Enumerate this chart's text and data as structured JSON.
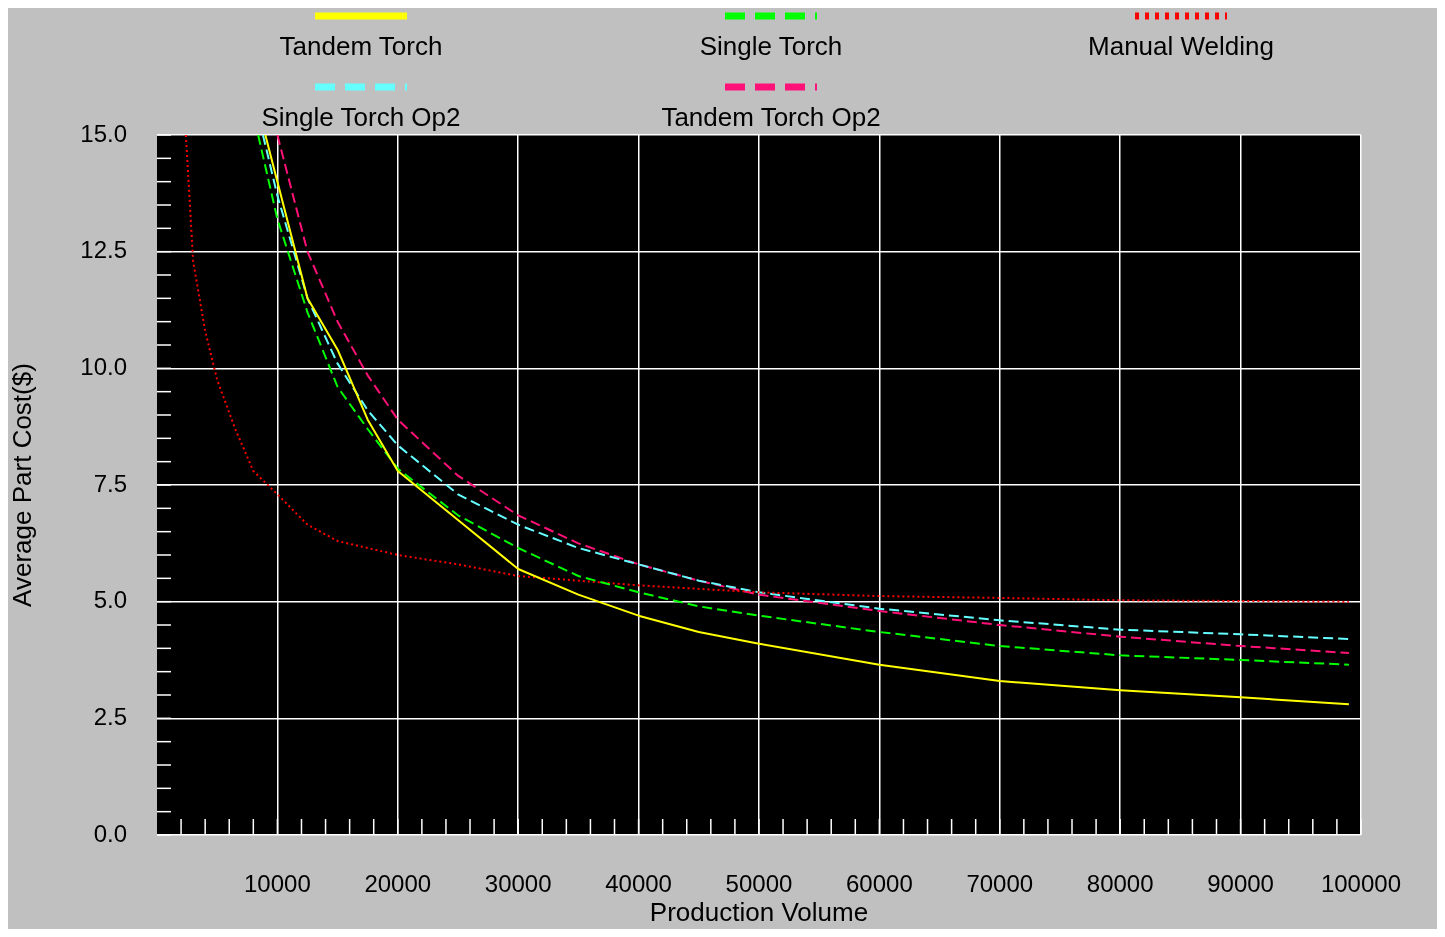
{
  "chart_data": {
    "type": "line",
    "xlabel": "Production Volume",
    "ylabel": "Average Part Cost($)",
    "xlim": [
      0,
      100000
    ],
    "ylim": [
      0,
      15
    ],
    "xticks": [
      {
        "value": 2000,
        "label": null
      },
      {
        "value": 4000,
        "label": null
      },
      {
        "value": 6000,
        "label": null
      },
      {
        "value": 8000,
        "label": null
      },
      10000,
      {
        "value": 12000,
        "label": null
      },
      {
        "value": 14000,
        "label": null
      },
      {
        "value": 16000,
        "label": null
      },
      {
        "value": 18000,
        "label": null
      },
      20000,
      {
        "value": 22000,
        "label": null
      },
      {
        "value": 24000,
        "label": null
      },
      {
        "value": 26000,
        "label": null
      },
      {
        "value": 28000,
        "label": null
      },
      30000,
      {
        "value": 32000,
        "label": null
      },
      {
        "value": 34000,
        "label": null
      },
      {
        "value": 36000,
        "label": null
      },
      {
        "value": 38000,
        "label": null
      },
      40000,
      {
        "value": 42000,
        "label": null
      },
      {
        "value": 44000,
        "label": null
      },
      {
        "value": 46000,
        "label": null
      },
      {
        "value": 48000,
        "label": null
      },
      50000,
      {
        "value": 52000,
        "label": null
      },
      {
        "value": 54000,
        "label": null
      },
      {
        "value": 56000,
        "label": null
      },
      {
        "value": 58000,
        "label": null
      },
      60000,
      {
        "value": 62000,
        "label": null
      },
      {
        "value": 64000,
        "label": null
      },
      {
        "value": 66000,
        "label": null
      },
      {
        "value": 68000,
        "label": null
      },
      70000,
      {
        "value": 72000,
        "label": null
      },
      {
        "value": 74000,
        "label": null
      },
      {
        "value": 76000,
        "label": null
      },
      {
        "value": 78000,
        "label": null
      },
      80000,
      {
        "value": 82000,
        "label": null
      },
      {
        "value": 84000,
        "label": null
      },
      {
        "value": 86000,
        "label": null
      },
      {
        "value": 88000,
        "label": null
      },
      90000,
      {
        "value": 92000,
        "label": null
      },
      {
        "value": 94000,
        "label": null
      },
      {
        "value": 96000,
        "label": null
      },
      {
        "value": 98000,
        "label": null
      },
      100000
    ],
    "yticks": [
      {
        "value": 0,
        "label": "0.0"
      },
      {
        "value": 0.5,
        "label": null
      },
      {
        "value": 1,
        "label": null
      },
      {
        "value": 1.5,
        "label": null
      },
      {
        "value": 2,
        "label": null
      },
      2.5,
      {
        "value": 3,
        "label": null
      },
      {
        "value": 3.5,
        "label": null
      },
      {
        "value": 4,
        "label": null
      },
      {
        "value": 4.5,
        "label": null
      },
      {
        "value": 5,
        "label": "5.0"
      },
      {
        "value": 5.5,
        "label": null
      },
      {
        "value": 6,
        "label": null
      },
      {
        "value": 6.5,
        "label": null
      },
      {
        "value": 7,
        "label": null
      },
      7.5,
      {
        "value": 8,
        "label": null
      },
      {
        "value": 8.5,
        "label": null
      },
      {
        "value": 9,
        "label": null
      },
      {
        "value": 9.5,
        "label": null
      },
      {
        "value": 10,
        "label": "10.0"
      },
      {
        "value": 10.5,
        "label": null
      },
      {
        "value": 11,
        "label": null
      },
      {
        "value": 11.5,
        "label": null
      },
      {
        "value": 12,
        "label": null
      },
      12.5,
      {
        "value": 13,
        "label": null
      },
      {
        "value": 13.5,
        "label": null
      },
      {
        "value": 14,
        "label": null
      },
      {
        "value": 14.5,
        "label": null
      },
      {
        "value": 15,
        "label": "15.0"
      }
    ],
    "grid": true,
    "legend": "top",
    "marker": "none",
    "series": [
      {
        "name": "Tandem Torch",
        "color": "#ffff00",
        "line_style": "solid",
        "x": [
          9000,
          10000,
          12500,
          15000,
          17500,
          20000,
          25000,
          30000,
          35000,
          40000,
          45000,
          50000,
          60000,
          70000,
          80000,
          90000,
          99000
        ],
        "values": [
          15,
          14.0,
          11.5,
          10.4,
          8.9,
          7.8,
          6.75,
          5.7,
          5.15,
          4.7,
          4.35,
          4.1,
          3.65,
          3.3,
          3.1,
          2.95,
          2.8
        ]
      },
      {
        "name": "Single Torch",
        "color": "#00ff00",
        "line_style": "dashed",
        "x": [
          8400,
          10000,
          12500,
          15000,
          17500,
          20000,
          25000,
          30000,
          35000,
          40000,
          45000,
          50000,
          60000,
          70000,
          80000,
          90000,
          99000
        ],
        "values": [
          15,
          13.2,
          11.2,
          9.6,
          8.7,
          7.85,
          6.85,
          6.15,
          5.55,
          5.2,
          4.9,
          4.7,
          4.35,
          4.05,
          3.85,
          3.75,
          3.65
        ]
      },
      {
        "name": "Manual Welding",
        "color": "#ff0000",
        "line_style": "dotted",
        "x": [
          2400,
          3000,
          4000,
          5000,
          6500,
          8000,
          10000,
          12500,
          15000,
          20000,
          25000,
          30000,
          40000,
          50000,
          60000,
          70000,
          80000,
          99000
        ],
        "values": [
          15,
          12.3,
          10.8,
          9.75,
          8.7,
          7.8,
          7.3,
          6.65,
          6.3,
          6.0,
          5.8,
          5.55,
          5.35,
          5.2,
          5.12,
          5.08,
          5.03,
          5.0
        ]
      },
      {
        "name": "Single Torch Op2",
        "color": "#66ffff",
        "line_style": "dashed",
        "x": [
          8800,
          10000,
          12500,
          15000,
          17500,
          20000,
          25000,
          30000,
          35000,
          40000,
          45000,
          50000,
          60000,
          70000,
          80000,
          90000,
          99000
        ],
        "values": [
          15,
          13.7,
          11.5,
          10.1,
          9.1,
          8.35,
          7.3,
          6.65,
          6.15,
          5.8,
          5.45,
          5.2,
          4.85,
          4.6,
          4.4,
          4.3,
          4.2
        ]
      },
      {
        "name": "Tandem Torch Op2",
        "color": "#ff1177",
        "line_style": "dashed",
        "x": [
          10000,
          12500,
          15000,
          17500,
          20000,
          25000,
          30000,
          35000,
          40000,
          45000,
          50000,
          60000,
          70000,
          80000,
          90000,
          99000
        ],
        "values": [
          15,
          12.5,
          11.0,
          9.85,
          8.9,
          7.7,
          6.85,
          6.25,
          5.8,
          5.45,
          5.15,
          4.8,
          4.5,
          4.25,
          4.05,
          3.9
        ]
      }
    ]
  }
}
